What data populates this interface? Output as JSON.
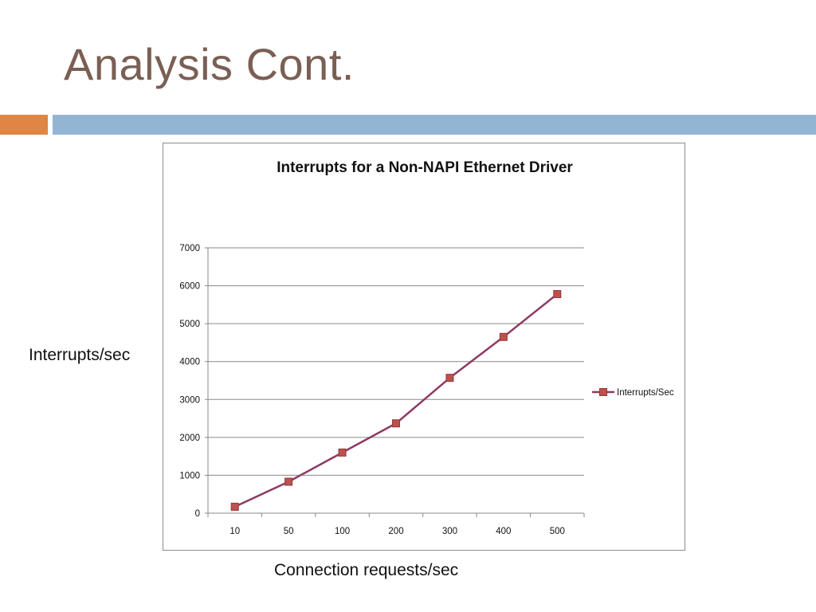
{
  "slide": {
    "title": "Analysis Cont.",
    "y_side_label": "Interrupts/sec",
    "x_side_label": "Connection requests/sec"
  },
  "colors": {
    "title": "#7a5f54",
    "accent_orange": "#e08544",
    "accent_blue": "#93b5d3",
    "series_line": "#8e3a64",
    "series_marker": "#c0504d"
  },
  "chart_data": {
    "type": "line",
    "title": "Interrupts for a Non-NAPI Ethernet Driver",
    "xlabel": "",
    "ylabel": "",
    "categories": [
      "10",
      "50",
      "100",
      "200",
      "300",
      "400",
      "500"
    ],
    "series": [
      {
        "name": "Interrupts/Sec",
        "values": [
          170,
          830,
          1600,
          2370,
          3570,
          4650,
          5780
        ],
        "marker": "square"
      }
    ],
    "ylim": [
      0,
      7000
    ],
    "yticks": [
      "0",
      "1000",
      "2000",
      "3000",
      "4000",
      "5000",
      "6000",
      "7000"
    ],
    "grid": true,
    "legend": "right"
  }
}
